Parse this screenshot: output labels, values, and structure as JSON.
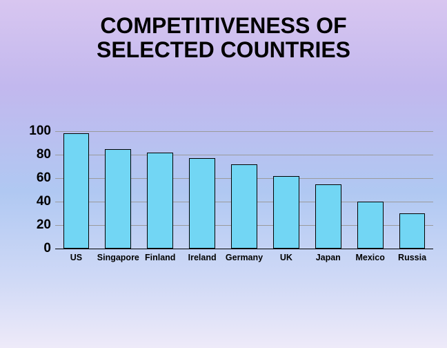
{
  "title": "COMPETITIVENESS OF\nSELECTED COUNTRIES",
  "title_fontsize": 32,
  "chart": {
    "type": "bar",
    "categories": [
      "US",
      "Singapore",
      "Finland",
      "Ireland",
      "Germany",
      "UK",
      "Japan",
      "Mexico",
      "Russia"
    ],
    "values": [
      98,
      85,
      82,
      77,
      72,
      62,
      55,
      40,
      30
    ],
    "bar_color": "#72d6f4",
    "bar_border_color": "#000000",
    "bar_width_ratio": 0.62,
    "ylim": [
      0,
      100
    ],
    "ytick_step": 20,
    "grid_color": "#9a9a9a",
    "baseline_color": "#000000",
    "tick_fontsize": 19,
    "xlabel_fontsize": 12.5
  }
}
